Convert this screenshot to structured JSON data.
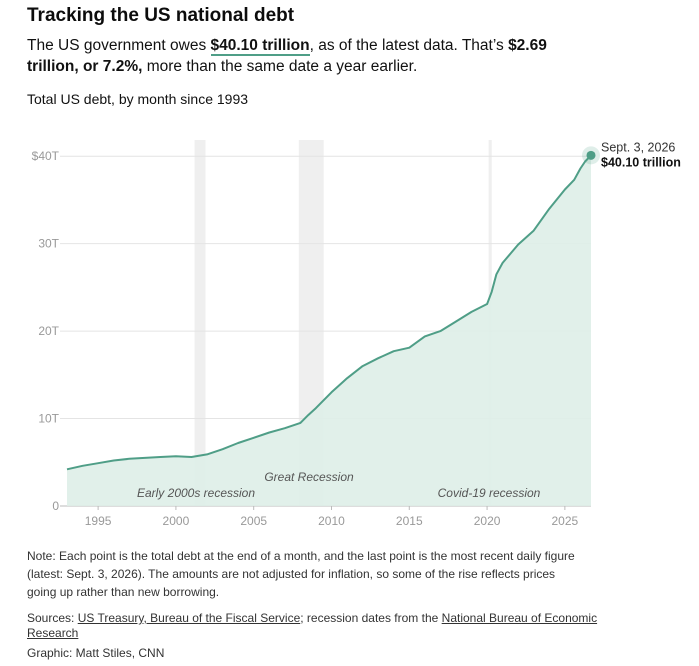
{
  "header": {
    "title": "Tracking the US national debt",
    "summary_prefix": "The US government owes ",
    "summary_amount": "$40.10 trillion",
    "summary_mid": ", as of the latest data. That’s ",
    "summary_change": "$2.69 trillion, or 7.2%,",
    "summary_suffix": " more than the same date a year earlier.",
    "subtitle": "Total US debt, by month since 1993"
  },
  "chart_data": {
    "type": "area",
    "y_unit": "trillions of US dollars",
    "xlim": [
      "1993-01",
      "2026-09"
    ],
    "ylim": [
      0,
      43
    ],
    "y_ticks": [
      {
        "value": 0,
        "label": "0"
      },
      {
        "value": 10,
        "label": "10T"
      },
      {
        "value": 20,
        "label": "20T"
      },
      {
        "value": 30,
        "label": "30T"
      },
      {
        "value": 40,
        "label": "$40T"
      }
    ],
    "x_ticks": [
      1995,
      2000,
      2005,
      2010,
      2015,
      2020,
      2025
    ],
    "grid": true,
    "colors": {
      "line": "#4f9e87",
      "fill": "#deeee8",
      "recession": "#efefef",
      "grid": "#e4e4e4",
      "axis_text": "#999999"
    },
    "recessions": [
      {
        "label": "Early 2000s recession",
        "start": 2001.2,
        "end": 2001.9
      },
      {
        "label": "Great Recession",
        "start": 2007.9,
        "end": 2009.5
      },
      {
        "label": "Covid-19 recession",
        "start": 2020.1,
        "end": 2020.3
      }
    ],
    "series": [
      {
        "x": [
          1993.0,
          1994.0,
          1995.0,
          1996.0,
          1997.0,
          1998.0,
          1999.0,
          2000.0,
          2001.0,
          2002.0,
          2003.0,
          2004.0,
          2005.0,
          2006.0,
          2007.0,
          2008.0,
          2008.5,
          2009.0,
          2010.0,
          2011.0,
          2012.0,
          2013.0,
          2014.0,
          2015.0,
          2016.0,
          2017.0,
          2018.0,
          2019.0,
          2020.0,
          2020.3,
          2020.6,
          2021.0,
          2022.0,
          2023.0,
          2024.0,
          2025.0,
          2025.6,
          2026.0,
          2026.3,
          2026.68
        ],
        "y": [
          4.2,
          4.6,
          4.9,
          5.2,
          5.4,
          5.5,
          5.6,
          5.7,
          5.6,
          5.9,
          6.5,
          7.2,
          7.8,
          8.4,
          8.9,
          9.5,
          10.4,
          11.2,
          13.0,
          14.6,
          16.0,
          16.9,
          17.7,
          18.1,
          19.4,
          20.0,
          21.1,
          22.2,
          23.1,
          24.5,
          26.5,
          27.8,
          29.9,
          31.5,
          34.0,
          36.2,
          37.3,
          38.6,
          39.4,
          40.1
        ]
      }
    ],
    "last_point": {
      "date": "Sept. 3, 2026",
      "value": "$40.10 trillion"
    }
  },
  "note": "Note: Each point is the total debt at the end of a month, and the last point is the most recent daily figure (latest: Sept. 3, 2026). The amounts are not adjusted for inflation, so some of the rise reflects prices going up rather than new borrowing.",
  "sources": {
    "prefix": "Sources: ",
    "link1": "US Treasury, Bureau of the Fiscal Service",
    "mid": "; recession dates from the ",
    "link2": "National Bureau of Economic Research"
  },
  "credit": "Graphic: Matt Stiles, CNN"
}
